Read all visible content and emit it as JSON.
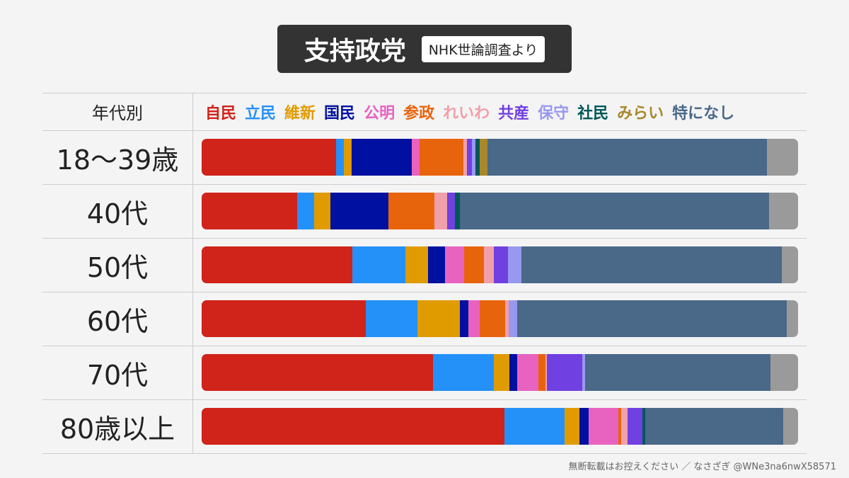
{
  "title": "支持政党",
  "badge": "NHK世論調査より",
  "header_label": "年代別",
  "footer": "無断転載はお控えください ／ なさざぎ @WNe3na6nwX58571",
  "chart_data": {
    "type": "bar",
    "orientation": "horizontal",
    "stacked": true,
    "unit": "%",
    "categories": [
      "18〜39歳",
      "40代",
      "50代",
      "60代",
      "70代",
      "80歳以上"
    ],
    "series": [
      {
        "name": "自民",
        "color": "#d0231a",
        "values": [
          22.5,
          16.0,
          25.3,
          27.5,
          38.8,
          50.8
        ]
      },
      {
        "name": "立民",
        "color": "#2491f8",
        "values": [
          1.4,
          2.8,
          8.9,
          8.7,
          10.2,
          10.1
        ]
      },
      {
        "name": "維新",
        "color": "#e09b00",
        "values": [
          1.2,
          2.8,
          3.8,
          7.1,
          2.6,
          2.5
        ]
      },
      {
        "name": "国民",
        "color": "#0010a0",
        "values": [
          10.1,
          9.7,
          2.8,
          1.4,
          1.3,
          1.5
        ]
      },
      {
        "name": "公明",
        "color": "#e862c0",
        "values": [
          1.3,
          0,
          3.3,
          1.9,
          3.6,
          5.0
        ]
      },
      {
        "name": "参政",
        "color": "#e8640c",
        "values": [
          7.4,
          7.7,
          3.3,
          4.3,
          1.2,
          0.5
        ]
      },
      {
        "name": "れいわ",
        "color": "#f0a0a8",
        "values": [
          0.6,
          2.1,
          1.7,
          0.6,
          0.2,
          1.1
        ]
      },
      {
        "name": "共産",
        "color": "#7040e0",
        "values": [
          0.8,
          1.3,
          2.3,
          0,
          5.9,
          2.5
        ]
      },
      {
        "name": "保守",
        "color": "#9898f0",
        "values": [
          0.6,
          0,
          2.3,
          1.4,
          0.5,
          0
        ]
      },
      {
        "name": "社民",
        "color": "#005858",
        "values": [
          0.7,
          0.8,
          0,
          0,
          0,
          0.5
        ]
      },
      {
        "name": "みらい",
        "color": "#a88828",
        "values": [
          1.3,
          0,
          0,
          0,
          0,
          0
        ]
      },
      {
        "name": "特になし",
        "color": "#4a6888",
        "values": [
          46.9,
          51.7,
          43.7,
          45.2,
          31.1,
          23.1
        ]
      },
      {
        "color": "#9a9a9a",
        "values": [
          5.2,
          4.9,
          2.7,
          1.9,
          4.6,
          2.5
        ]
      }
    ],
    "xlim": [
      0,
      100
    ],
    "legend_placement": "top"
  }
}
